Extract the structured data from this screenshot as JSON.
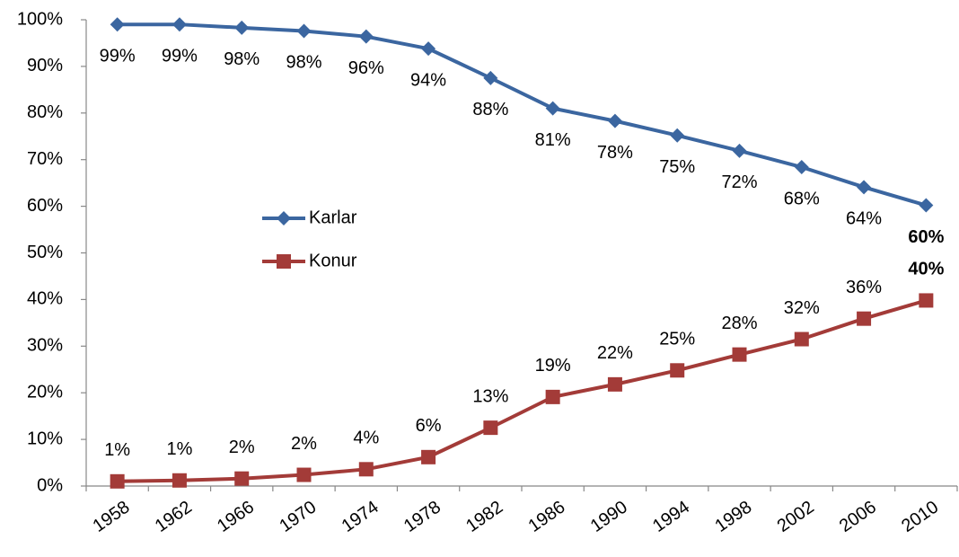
{
  "chart_data": {
    "type": "line",
    "categories": [
      "1958",
      "1962",
      "1966",
      "1970",
      "1974",
      "1978",
      "1982",
      "1986",
      "1990",
      "1994",
      "1998",
      "2002",
      "2006",
      "2010"
    ],
    "series": [
      {
        "name": "Karlar",
        "color": "#3b66a0",
        "marker": "diamond",
        "values": [
          99,
          99,
          98.3,
          97.6,
          96.4,
          93.8,
          87.5,
          81,
          78.3,
          75.2,
          71.9,
          68.4,
          64.1,
          60.2
        ],
        "value_labels": [
          "99%",
          "99%",
          "98%",
          "98%",
          "96%",
          "94%",
          "88%",
          "81%",
          "78%",
          "75%",
          "72%",
          "68%",
          "64%",
          "60%"
        ]
      },
      {
        "name": "Konur",
        "color": "#a33b38",
        "marker": "square",
        "values": [
          1,
          1.2,
          1.6,
          2.4,
          3.6,
          6.2,
          12.5,
          19.1,
          21.8,
          24.8,
          28.2,
          31.5,
          35.9,
          39.8
        ],
        "value_labels": [
          "1%",
          "1%",
          "2%",
          "2%",
          "4%",
          "6%",
          "13%",
          "19%",
          "22%",
          "25%",
          "28%",
          "32%",
          "36%",
          "40%"
        ]
      }
    ],
    "ylim": [
      0,
      100
    ],
    "yticks": [
      {
        "value": 0,
        "label": "0%"
      },
      {
        "value": 10,
        "label": "10%"
      },
      {
        "value": 20,
        "label": "20%"
      },
      {
        "value": 30,
        "label": "30%"
      },
      {
        "value": 40,
        "label": "40%"
      },
      {
        "value": 50,
        "label": "50%"
      },
      {
        "value": 60,
        "label": "60%"
      },
      {
        "value": 70,
        "label": "70%"
      },
      {
        "value": 80,
        "label": "80%"
      },
      {
        "value": 90,
        "label": "90%"
      },
      {
        "value": 100,
        "label": "100%"
      }
    ],
    "grid": false
  }
}
